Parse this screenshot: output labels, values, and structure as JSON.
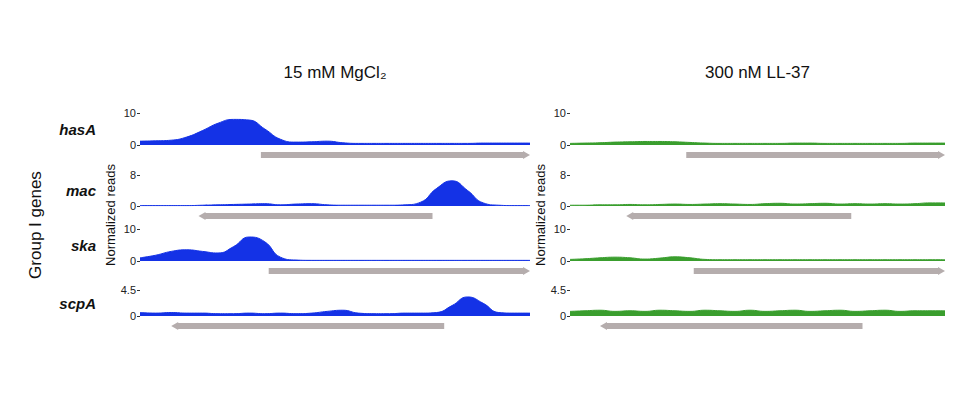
{
  "figure": {
    "row_title": "Group I genes",
    "ylabel": "Normalized reads",
    "columns": [
      "15 mM MgCl₂",
      "300 nM LL-37"
    ],
    "genes": [
      "hasA",
      "mac",
      "ska",
      "scpA"
    ]
  },
  "chart_data": [
    {
      "type": "area",
      "color": "#1432e6",
      "grid": false,
      "tick_labels": "y",
      "xlim": [
        0,
        100
      ],
      "ylim": [
        0,
        10
      ],
      "yticks": [
        0,
        10
      ],
      "x": [
        0,
        4,
        8,
        12,
        16,
        20,
        24,
        28,
        32,
        36,
        40,
        44,
        48,
        52,
        56,
        60,
        64,
        68,
        72,
        76,
        80,
        84,
        88,
        92,
        96,
        100
      ],
      "values": [
        1.2,
        1.3,
        1.5,
        2.5,
        4.5,
        6.8,
        8.0,
        7.8,
        5.0,
        1.8,
        0.9,
        1.0,
        1.2,
        0.7,
        0.5,
        0.5,
        0.5,
        0.5,
        0.5,
        0.5,
        0.5,
        0.5,
        0.6,
        0.6,
        0.6,
        0.6
      ]
    },
    {
      "type": "area",
      "color": "#1432e6",
      "grid": false,
      "tick_labels": "y",
      "xlim": [
        0,
        100
      ],
      "ylim": [
        0,
        8
      ],
      "yticks": [
        0,
        8
      ],
      "x": [
        0,
        4,
        8,
        12,
        16,
        20,
        24,
        28,
        32,
        36,
        40,
        44,
        48,
        52,
        56,
        60,
        64,
        68,
        72,
        76,
        80,
        84,
        88,
        92,
        96,
        100
      ],
      "values": [
        0.1,
        0.1,
        0.1,
        0.1,
        0.2,
        0.3,
        0.4,
        0.5,
        0.6,
        0.3,
        0.5,
        0.6,
        0.3,
        0.2,
        0.2,
        0.2,
        0.2,
        0.3,
        1.0,
        4.5,
        6.5,
        4.0,
        0.8,
        0.2,
        0.1,
        0.1
      ]
    },
    {
      "type": "area",
      "color": "#1432e6",
      "grid": false,
      "tick_labels": "y",
      "xlim": [
        0,
        100
      ],
      "ylim": [
        0,
        10
      ],
      "yticks": [
        0,
        10
      ],
      "x": [
        0,
        4,
        8,
        12,
        16,
        20,
        24,
        28,
        32,
        36,
        40,
        44,
        48,
        52,
        56,
        60,
        64,
        68,
        72,
        76,
        80,
        84,
        88,
        92,
        96,
        100
      ],
      "values": [
        1.0,
        1.8,
        3.0,
        3.5,
        3.0,
        2.5,
        4.5,
        7.5,
        6.0,
        1.2,
        0.3,
        0.2,
        0.2,
        0.2,
        0.2,
        0.2,
        0.2,
        0.2,
        0.2,
        0.2,
        0.2,
        0.2,
        0.2,
        0.2,
        0.2,
        0.2
      ]
    },
    {
      "type": "area",
      "color": "#1432e6",
      "grid": false,
      "tick_labels": "y",
      "xlim": [
        0,
        100
      ],
      "ylim": [
        0,
        4.5
      ],
      "yticks": [
        0,
        4.5
      ],
      "x": [
        0,
        4,
        8,
        12,
        16,
        20,
        24,
        28,
        32,
        36,
        40,
        44,
        48,
        52,
        56,
        60,
        64,
        68,
        72,
        76,
        80,
        84,
        88,
        92,
        96,
        100
      ],
      "values": [
        0.6,
        0.5,
        0.6,
        0.5,
        0.5,
        0.4,
        0.4,
        0.5,
        0.4,
        0.5,
        0.4,
        0.5,
        0.8,
        1.0,
        0.5,
        0.4,
        0.4,
        0.5,
        0.5,
        0.6,
        1.8,
        3.3,
        2.2,
        0.6,
        0.5,
        0.5
      ]
    },
    {
      "type": "area",
      "color": "#3a9e2e",
      "grid": false,
      "tick_labels": "y",
      "xlim": [
        0,
        100
      ],
      "ylim": [
        0,
        10
      ],
      "yticks": [
        0,
        10
      ],
      "x": [
        0,
        4,
        8,
        12,
        16,
        20,
        24,
        28,
        32,
        36,
        40,
        44,
        48,
        52,
        56,
        60,
        64,
        68,
        72,
        76,
        80,
        84,
        88,
        92,
        96,
        100
      ],
      "values": [
        0.5,
        0.6,
        0.7,
        0.9,
        1.0,
        1.1,
        1.1,
        1.0,
        0.8,
        0.6,
        0.5,
        0.5,
        0.5,
        0.5,
        0.5,
        0.6,
        0.6,
        0.5,
        0.5,
        0.5,
        0.5,
        0.5,
        0.5,
        0.6,
        0.6,
        0.6
      ]
    },
    {
      "type": "area",
      "color": "#3a9e2e",
      "grid": false,
      "tick_labels": "y",
      "xlim": [
        0,
        100
      ],
      "ylim": [
        0,
        8
      ],
      "yticks": [
        0,
        8
      ],
      "x": [
        0,
        4,
        8,
        12,
        16,
        20,
        24,
        28,
        32,
        36,
        40,
        44,
        48,
        52,
        56,
        60,
        64,
        68,
        72,
        76,
        80,
        84,
        88,
        92,
        96,
        100
      ],
      "values": [
        0.2,
        0.2,
        0.3,
        0.3,
        0.4,
        0.3,
        0.4,
        0.5,
        0.4,
        0.5,
        0.6,
        0.5,
        0.4,
        0.6,
        0.7,
        0.5,
        0.6,
        0.7,
        0.5,
        0.6,
        0.5,
        0.6,
        0.5,
        0.6,
        0.8,
        0.8
      ]
    },
    {
      "type": "area",
      "color": "#3a9e2e",
      "grid": false,
      "tick_labels": "y",
      "xlim": [
        0,
        100
      ],
      "ylim": [
        0,
        10
      ],
      "yticks": [
        0,
        10
      ],
      "x": [
        0,
        4,
        8,
        12,
        16,
        20,
        24,
        28,
        32,
        36,
        40,
        44,
        48,
        52,
        56,
        60,
        64,
        68,
        72,
        76,
        80,
        84,
        88,
        92,
        96,
        100
      ],
      "values": [
        0.5,
        0.7,
        1.0,
        1.2,
        1.0,
        0.6,
        0.9,
        1.3,
        1.0,
        0.5,
        0.4,
        0.4,
        0.4,
        0.4,
        0.4,
        0.4,
        0.4,
        0.4,
        0.4,
        0.4,
        0.4,
        0.4,
        0.4,
        0.4,
        0.4,
        0.4
      ]
    },
    {
      "type": "area",
      "color": "#3a9e2e",
      "grid": false,
      "tick_labels": "y",
      "xlim": [
        0,
        100
      ],
      "ylim": [
        0,
        4.5
      ],
      "yticks": [
        0,
        4.5
      ],
      "x": [
        0,
        4,
        8,
        12,
        16,
        20,
        24,
        28,
        32,
        36,
        40,
        44,
        48,
        52,
        56,
        60,
        64,
        68,
        72,
        76,
        80,
        84,
        88,
        92,
        96,
        100
      ],
      "values": [
        0.8,
        0.9,
        1.0,
        0.8,
        0.9,
        0.8,
        1.0,
        0.9,
        0.8,
        1.0,
        0.9,
        0.8,
        1.0,
        0.8,
        0.9,
        1.0,
        0.8,
        0.9,
        1.0,
        0.8,
        0.9,
        1.0,
        0.8,
        0.9,
        0.9,
        0.9
      ]
    }
  ]
}
